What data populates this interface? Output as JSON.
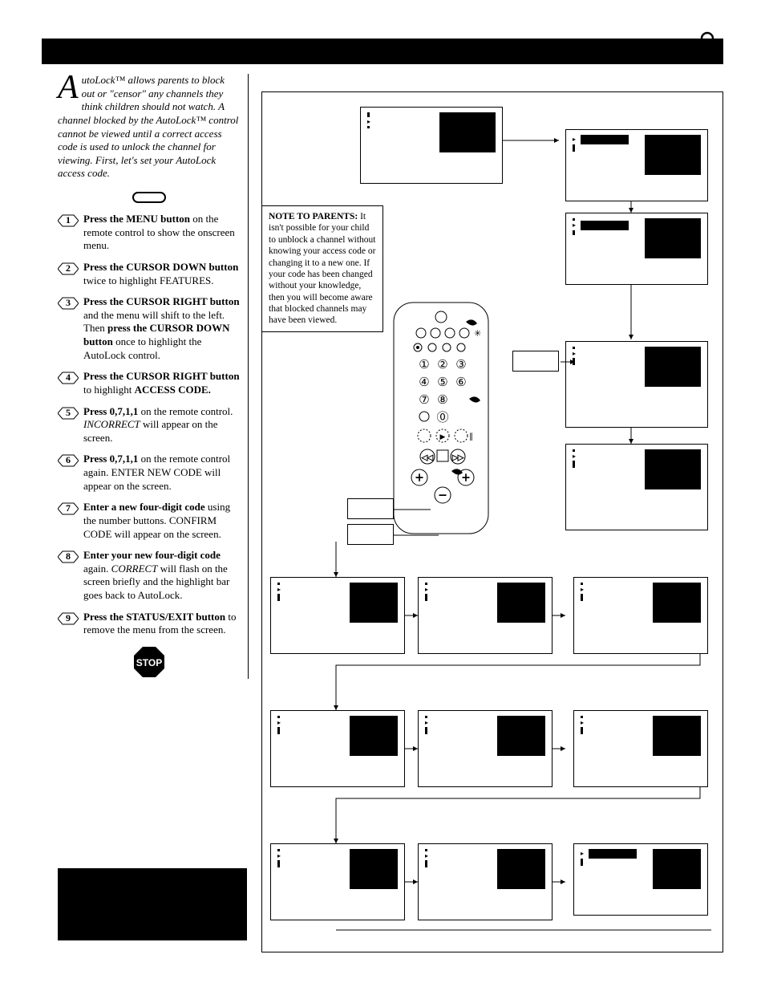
{
  "colors": {
    "bg": "#ffffff",
    "ink": "#000000"
  },
  "title_bar": {
    "height": 32
  },
  "intro": "utoLock™ allows parents to block out or \"censor\" any channels they think children should not watch.  A channel blocked by the AutoLock™ control cannot be viewed until a correct access code is used to unlock the channel for viewing.  First, let's set your AutoLock access code.",
  "dropcap": "A",
  "steps": [
    {
      "n": "1",
      "html": "<b>Press the MENU button</b> on the remote control to show the onscreen menu."
    },
    {
      "n": "2",
      "html": "<b>Press the CURSOR DOWN button</b> twice to highlight FEATURES."
    },
    {
      "n": "3",
      "html": "<b>Press the CURSOR RIGHT button</b> and the menu will shift to the left. Then <b>press the CURSOR DOWN button</b> once to highlight the AutoLock control."
    },
    {
      "n": "4",
      "html": "<b>Press the CURSOR RIGHT button</b> to highlight <b>ACCESS CODE.</b>"
    },
    {
      "n": "5",
      "html": "<b>Press 0,7,1,1</b> on the remote control.  <span class='it'>INCORRECT</span> will appear on the screen."
    },
    {
      "n": "6",
      "html": "<b>Press 0,7,1,1</b> on the remote control again. ENTER NEW CODE will appear on the screen."
    },
    {
      "n": "7",
      "html": "<b>Enter a new four-digit code</b> using the number buttons.  CONFIRM CODE will appear on the screen."
    },
    {
      "n": "8",
      "html": "<b>Enter your new four-digit code</b> again. <span class='it'>CORRECT</span> will flash on the screen briefly and the highlight bar goes back to AutoLock."
    },
    {
      "n": "9",
      "html": "<b>Press the STATUS/EXIT button</b> to remove the menu from the screen."
    }
  ],
  "stop_label": "STOP",
  "note": {
    "title": "NOTE TO PARENTS:",
    "body": "It isn't possible for your child to unblock a channel without knowing your access code or changing it to a new one.  If your code has been changed without your knowledge,  then you will become aware that blocked channels may have been viewed."
  },
  "panel_items": [
    "",
    "",
    "",
    "",
    ""
  ],
  "panel_items_4": [
    "",
    "",
    "",
    ""
  ],
  "remote_keys": [
    "①",
    "②",
    "③",
    "④",
    "⑤",
    "⑥",
    "⑦",
    "⑧",
    "⓪"
  ],
  "page_number": ""
}
